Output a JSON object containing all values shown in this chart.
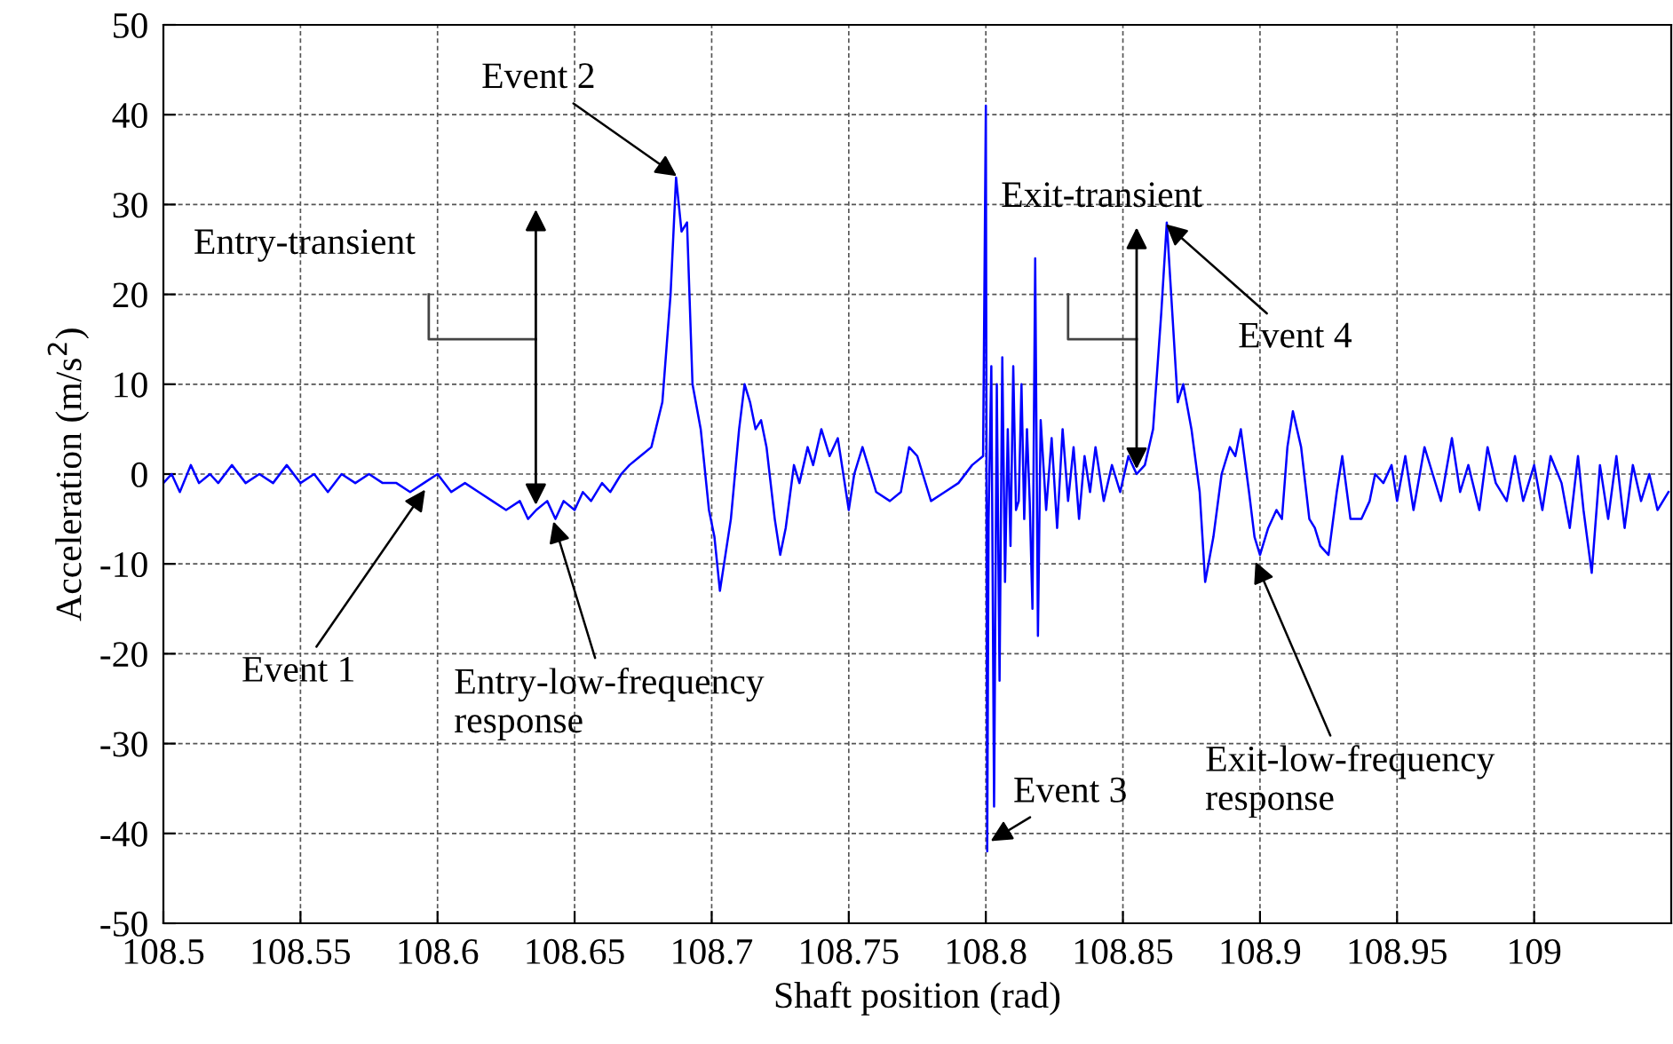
{
  "chart_data": {
    "type": "line",
    "xlabel": "Shaft position (rad)",
    "ylabel": "Acceleration (m/s$^{2}$)",
    "xlim": [
      108.5,
      109.05
    ],
    "ylim": [
      -50,
      50
    ],
    "xticks": [
      108.5,
      108.55,
      108.6,
      108.65,
      108.7,
      108.75,
      108.8,
      108.85,
      108.9,
      108.95,
      109
    ],
    "yticks": [
      -50,
      -40,
      -30,
      -20,
      -10,
      0,
      10,
      20,
      30,
      40,
      50
    ],
    "grid": true,
    "line_style": "solid",
    "marker": "none",
    "series": [
      {
        "color": "#0000ff",
        "x": [
          108.5,
          108.503,
          108.506,
          108.51,
          108.513,
          108.517,
          108.52,
          108.525,
          108.53,
          108.535,
          108.54,
          108.545,
          108.55,
          108.555,
          108.56,
          108.565,
          108.57,
          108.575,
          108.58,
          108.585,
          108.59,
          108.595,
          108.6,
          108.605,
          108.61,
          108.615,
          108.62,
          108.625,
          108.63,
          108.633,
          108.636,
          108.64,
          108.643,
          108.646,
          108.65,
          108.653,
          108.656,
          108.66,
          108.663,
          108.667,
          108.67,
          108.674,
          108.678,
          108.682,
          108.685,
          108.687,
          108.689,
          108.691,
          108.693,
          108.696,
          108.699,
          108.701,
          108.703,
          108.705,
          108.707,
          108.71,
          108.712,
          108.714,
          108.716,
          108.718,
          108.72,
          108.723,
          108.725,
          108.727,
          108.73,
          108.732,
          108.735,
          108.737,
          108.74,
          108.743,
          108.746,
          108.75,
          108.752,
          108.755,
          108.76,
          108.765,
          108.769,
          108.772,
          108.775,
          108.78,
          108.785,
          108.79,
          108.795,
          108.799,
          108.8,
          108.8005,
          108.801,
          108.802,
          108.803,
          108.804,
          108.805,
          108.806,
          108.807,
          108.808,
          108.809,
          108.81,
          108.811,
          108.812,
          108.813,
          108.814,
          108.815,
          108.816,
          108.817,
          108.818,
          108.819,
          108.82,
          108.822,
          108.824,
          108.826,
          108.828,
          108.83,
          108.832,
          108.834,
          108.836,
          108.838,
          108.84,
          108.843,
          108.846,
          108.849,
          108.852,
          108.855,
          108.858,
          108.861,
          108.864,
          108.866,
          108.868,
          108.87,
          108.872,
          108.875,
          108.878,
          108.88,
          108.883,
          108.886,
          108.889,
          108.891,
          108.893,
          108.896,
          108.898,
          108.9,
          108.903,
          108.906,
          108.908,
          108.91,
          108.912,
          108.915,
          108.918,
          108.92,
          108.922,
          108.925,
          108.928,
          108.93,
          108.933,
          108.937,
          108.94,
          108.942,
          108.945,
          108.948,
          108.95,
          108.953,
          108.956,
          108.96,
          108.963,
          108.966,
          108.97,
          108.973,
          108.976,
          108.98,
          108.983,
          108.986,
          108.99,
          108.993,
          108.996,
          109,
          109.003,
          109.006,
          109.01,
          109.013,
          109.016,
          109.018,
          109.021,
          109.024,
          109.027,
          109.03,
          109.033,
          109.036,
          109.039,
          109.042,
          109.045,
          109.049
        ],
        "values": [
          -1,
          0,
          -2,
          1,
          -1,
          0,
          -1,
          1,
          -1,
          0,
          -1,
          1,
          -1,
          0,
          -2,
          0,
          -1,
          0,
          -1,
          -1,
          -2,
          -1,
          0,
          -2,
          -1,
          -2,
          -3,
          -4,
          -3,
          -5,
          -4,
          -3,
          -5,
          -3,
          -4,
          -2,
          -3,
          -1,
          -2,
          0,
          1,
          2,
          3,
          8,
          20,
          33,
          27,
          28,
          10,
          5,
          -4,
          -7,
          -13,
          -9,
          -5,
          5,
          10,
          8,
          5,
          6,
          3,
          -5,
          -9,
          -6,
          1,
          -1,
          3,
          1,
          5,
          2,
          4,
          -4,
          0,
          3,
          -2,
          -3,
          -2,
          3,
          2,
          -3,
          -2,
          -1,
          1,
          2,
          41,
          -42,
          -5,
          12,
          -37,
          10,
          -23,
          13,
          -12,
          5,
          -8,
          12,
          -4,
          -3,
          10,
          -5,
          5,
          -3,
          -15,
          24,
          -18,
          6,
          -4,
          4,
          -6,
          5,
          -3,
          3,
          -5,
          2,
          -2,
          3,
          -3,
          1,
          -2,
          2,
          0,
          1,
          5,
          18,
          28,
          18,
          8,
          10,
          5,
          -2,
          -12,
          -7,
          0,
          3,
          2,
          5,
          -2,
          -7,
          -9,
          -6,
          -4,
          -5,
          3,
          7,
          3,
          -5,
          -6,
          -8,
          -9,
          -2,
          2,
          -5,
          -5,
          -3,
          0,
          -1,
          1,
          -3,
          2,
          -4,
          3,
          0,
          -3,
          4,
          -2,
          1,
          -4,
          3,
          -1,
          -3,
          2,
          -3,
          1,
          -4,
          2,
          -1,
          -6,
          2,
          -4,
          -11,
          1,
          -5,
          2,
          -6,
          1,
          -3,
          0,
          -4,
          -2
        ]
      }
    ],
    "annotations": [
      {
        "text": "Event 1",
        "x": 108.596,
        "y": -1.5
      },
      {
        "text": "Event 2",
        "x": 108.688,
        "y": 33
      },
      {
        "text": "Event 3",
        "x": 108.801,
        "y": -41
      },
      {
        "text": "Event 4",
        "x": 108.865,
        "y": 28
      },
      {
        "text": "Entry-low-frequency\nresponse",
        "x": 108.642,
        "y": -5
      },
      {
        "text": "Exit-low-frequency\nresponse",
        "x": 108.898,
        "y": -9.5
      },
      "Entry-transient",
      {
        "text": "Exit-transient",
        "x": 108.855,
        "y": 0
      }
    ]
  }
}
